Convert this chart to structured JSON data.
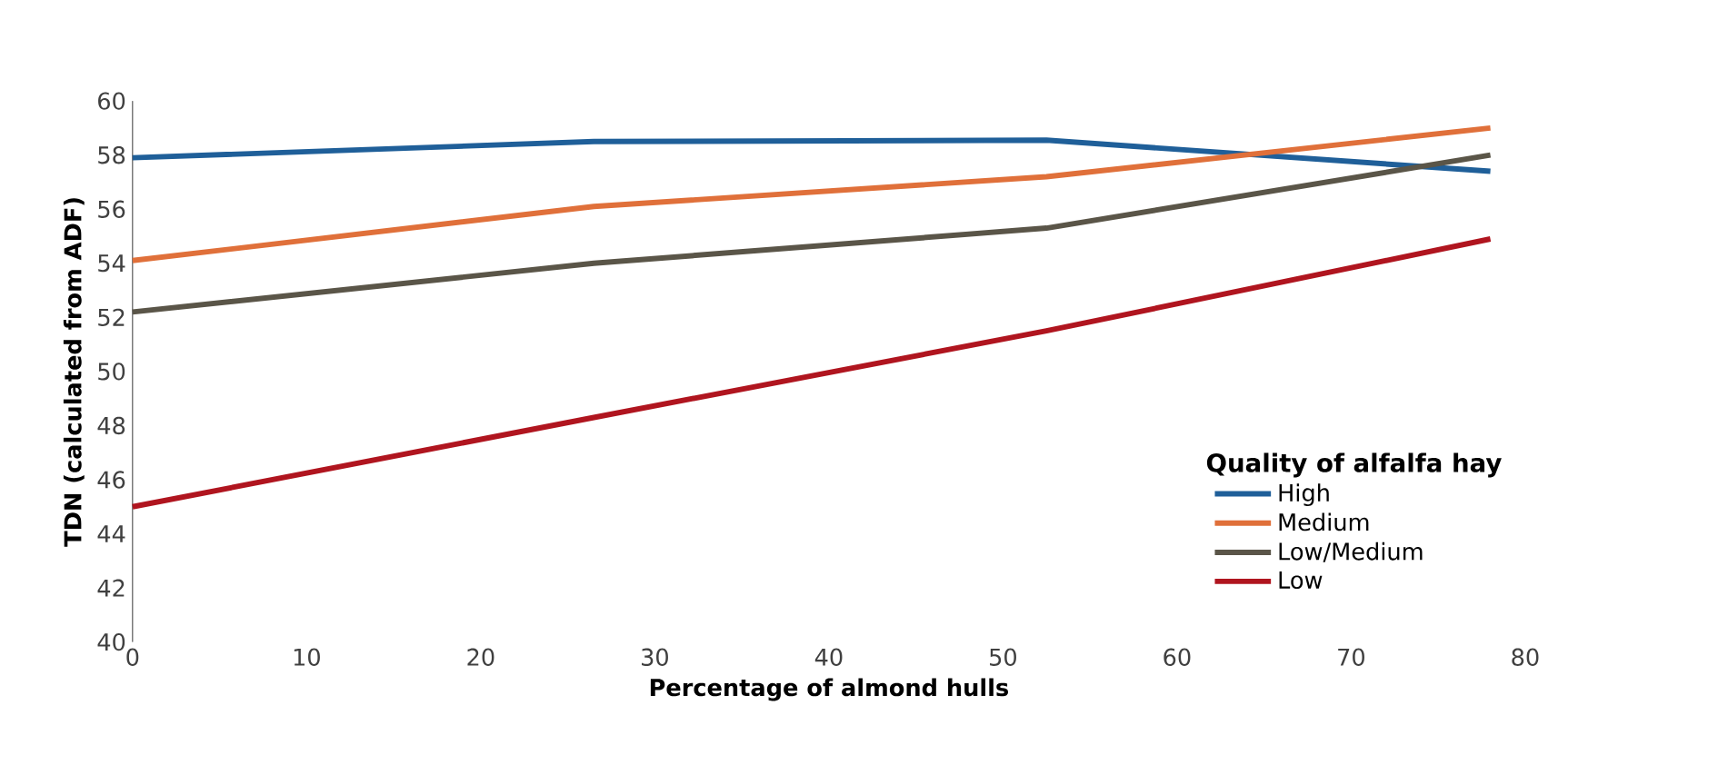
{
  "chart_data": {
    "type": "line",
    "xlabel": "Percentage of almond hulls",
    "ylabel": "TDN (calculated from ADF)",
    "legend_title": "Quality of alfalfa hay",
    "legend": "bottom right",
    "x": [
      0,
      26.5,
      52.5,
      78
    ],
    "xlim": [
      0,
      80
    ],
    "xticks": [
      0,
      10,
      20,
      30,
      40,
      50,
      60,
      70,
      80
    ],
    "ylim": [
      40,
      60
    ],
    "yticks": [
      40,
      42,
      44,
      46,
      48,
      50,
      52,
      54,
      56,
      58,
      60
    ],
    "marker": "none",
    "line_style": "solid",
    "series": [
      {
        "name": "High",
        "color": "#1f5f99",
        "values": [
          57.9,
          58.5,
          58.55,
          57.4
        ]
      },
      {
        "name": "Medium",
        "color": "#e0703a",
        "values": [
          54.1,
          56.1,
          57.2,
          59.0
        ]
      },
      {
        "name": "Low/Medium",
        "color": "#5a5548",
        "values": [
          52.2,
          54.0,
          55.3,
          58.0
        ]
      },
      {
        "name": "Low",
        "color": "#b0151f",
        "values": [
          45.0,
          48.3,
          51.5,
          54.9
        ]
      }
    ]
  }
}
